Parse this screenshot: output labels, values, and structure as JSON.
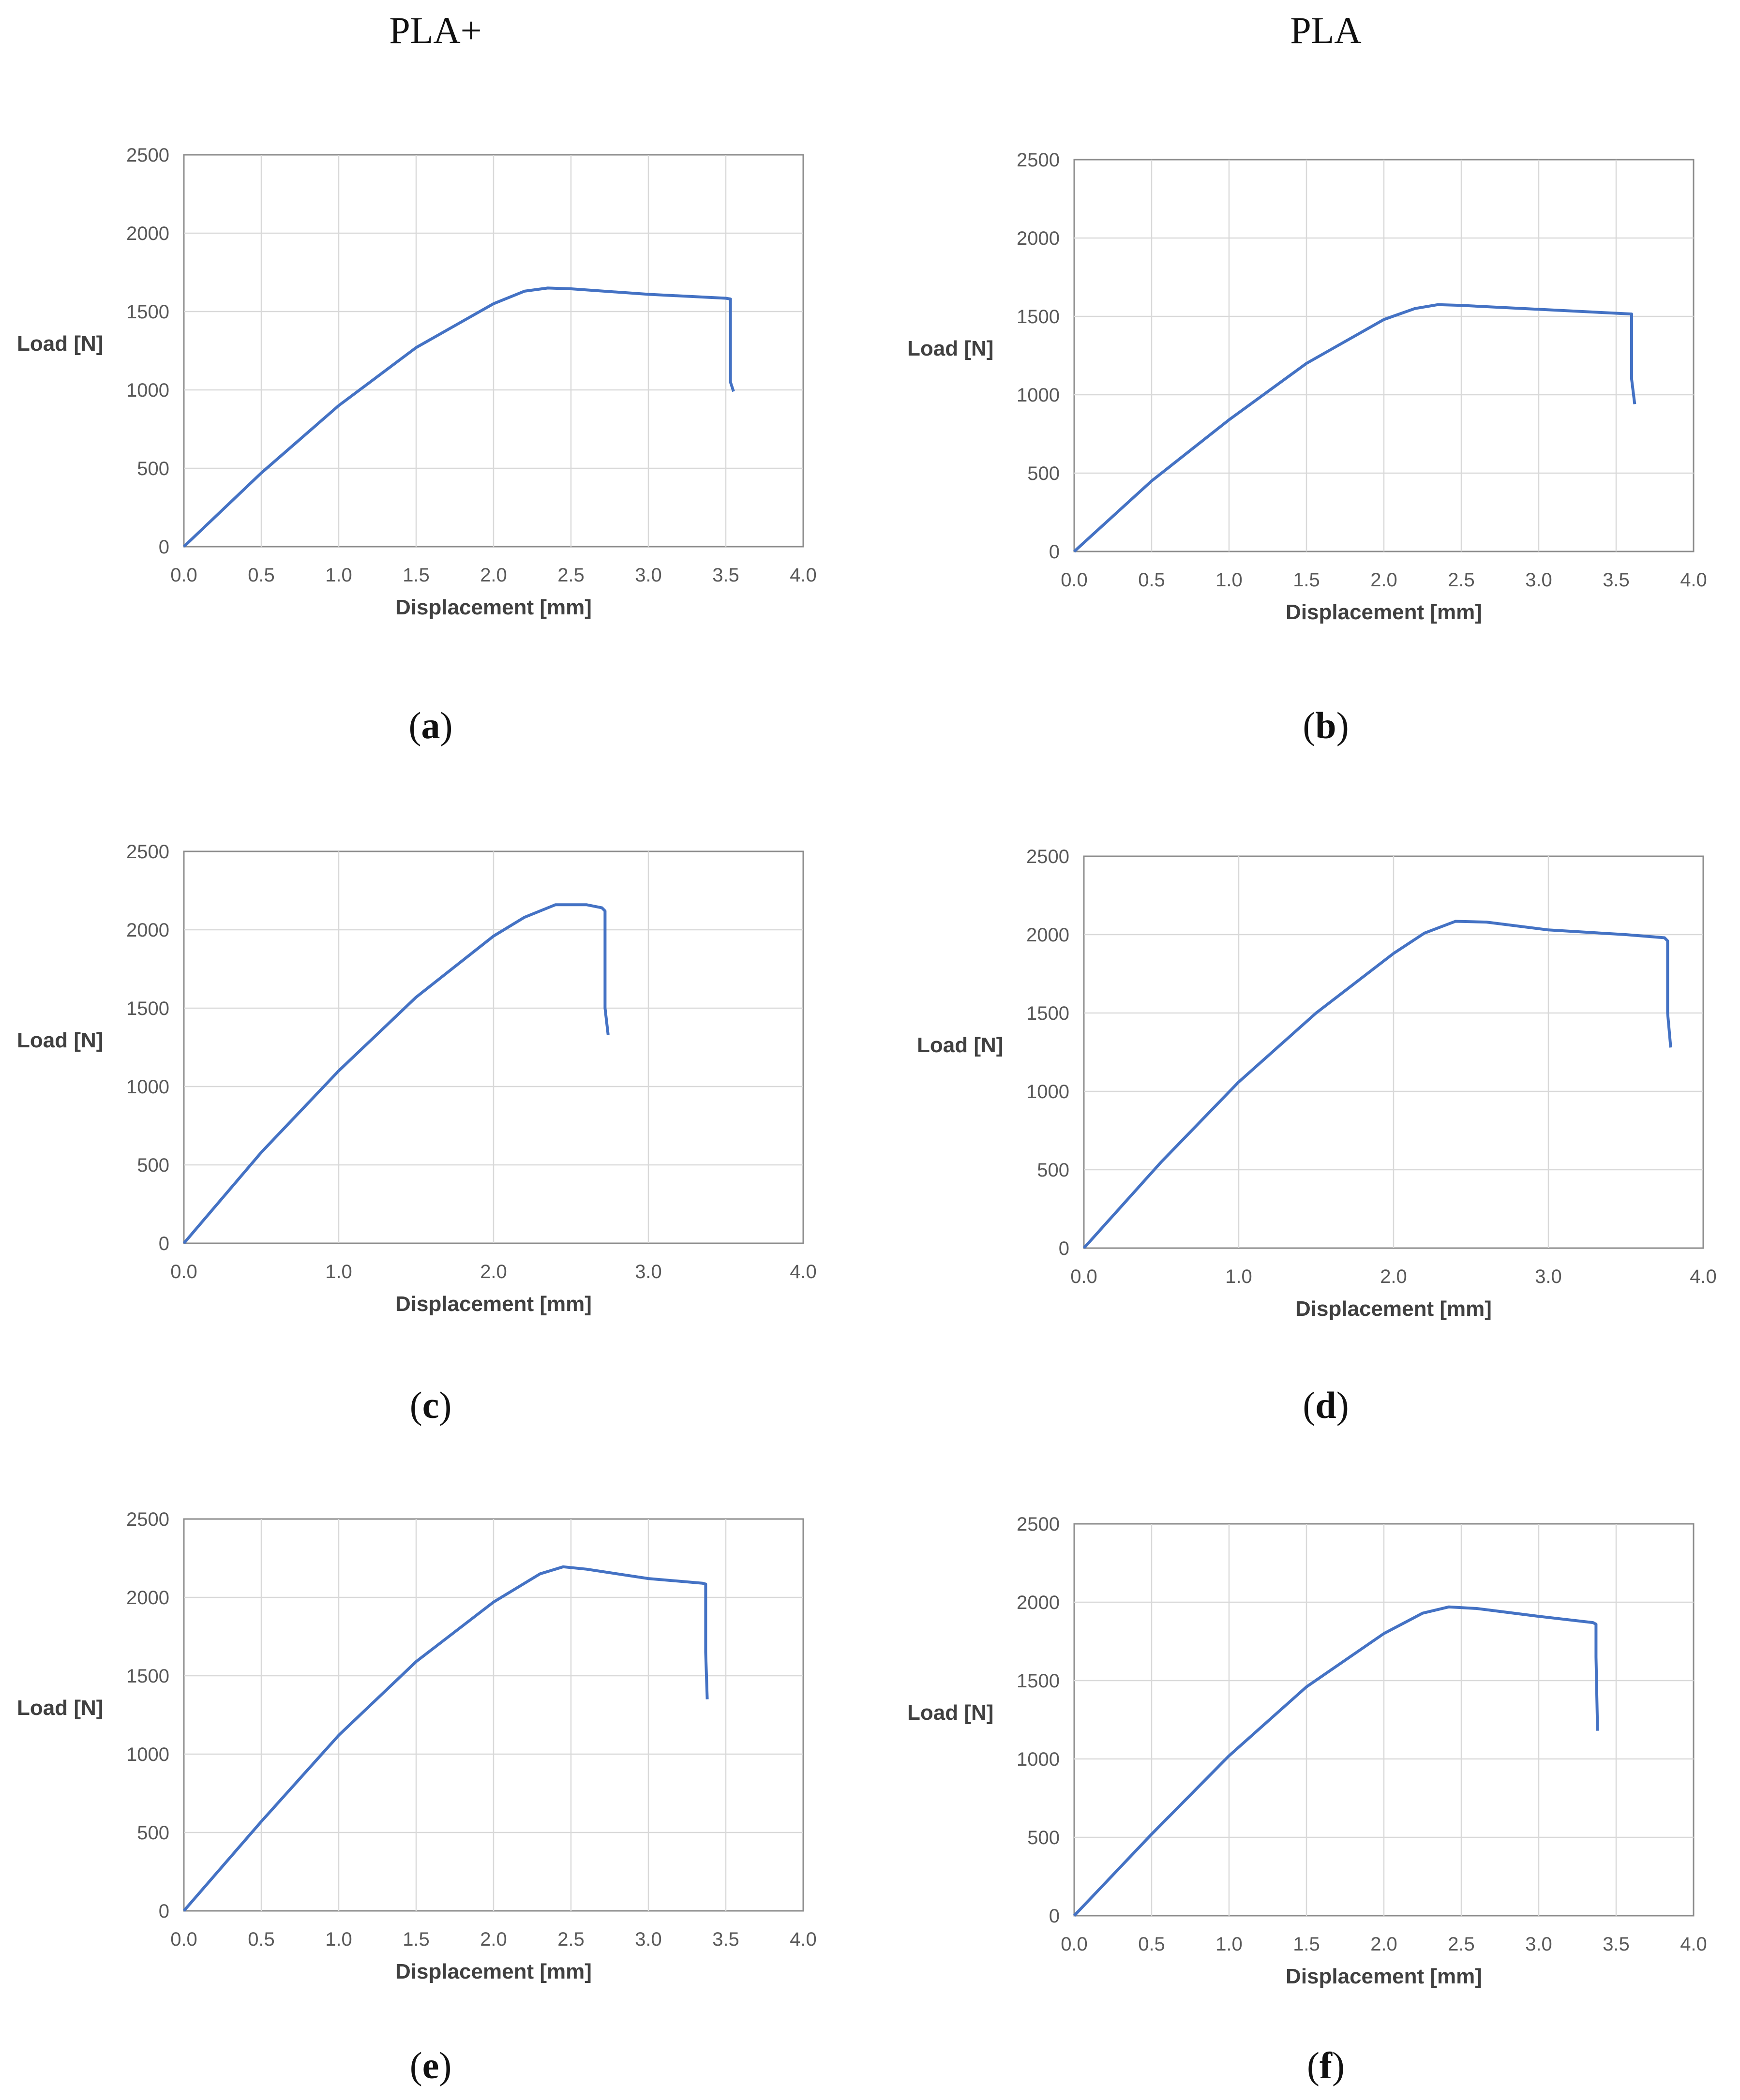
{
  "columns": {
    "left": "PLA+",
    "right": "PLA"
  },
  "chart_data": [
    {
      "id": "a",
      "caption": "a",
      "type": "line",
      "xlabel": "Displacement [mm]",
      "ylabel": "Load [N]",
      "xlim": [
        0,
        4
      ],
      "ylim": [
        0,
        2500
      ],
      "xticks": [
        "0.0",
        "0.5",
        "1.0",
        "1.5",
        "2.0",
        "2.5",
        "3.0",
        "3.5",
        "4.0"
      ],
      "yticks": [
        "0",
        "500",
        "1000",
        "1500",
        "2000",
        "2500"
      ],
      "series": [
        {
          "name": "PLA+",
          "x": [
            0,
            0.5,
            1.0,
            1.5,
            2.0,
            2.2,
            2.35,
            2.5,
            3.0,
            3.5,
            3.53,
            3.53,
            3.55
          ],
          "y": [
            0,
            470,
            900,
            1270,
            1550,
            1630,
            1650,
            1645,
            1610,
            1585,
            1580,
            1050,
            990
          ]
        }
      ]
    },
    {
      "id": "b",
      "caption": "b",
      "type": "line",
      "xlabel": "Displacement [mm]",
      "ylabel": "Load [N]",
      "xlim": [
        0,
        4
      ],
      "ylim": [
        0,
        2500
      ],
      "xticks": [
        "0.0",
        "0.5",
        "1.0",
        "1.5",
        "2.0",
        "2.5",
        "3.0",
        "3.5",
        "4.0"
      ],
      "yticks": [
        "0",
        "500",
        "1000",
        "1500",
        "2000",
        "2500"
      ],
      "series": [
        {
          "name": "PLA",
          "x": [
            0,
            0.5,
            1.0,
            1.5,
            2.0,
            2.2,
            2.35,
            2.5,
            3.0,
            3.5,
            3.6,
            3.6,
            3.62
          ],
          "y": [
            0,
            450,
            840,
            1200,
            1480,
            1550,
            1575,
            1570,
            1545,
            1520,
            1515,
            1100,
            940
          ]
        }
      ]
    },
    {
      "id": "c",
      "caption": "c",
      "type": "line",
      "xlabel": "Displacement [mm]",
      "ylabel": "Load [N]",
      "xlim": [
        0,
        4
      ],
      "ylim": [
        0,
        2500
      ],
      "xticks": [
        "0.0",
        "1.0",
        "2.0",
        "3.0",
        "4.0"
      ],
      "yticks": [
        "0",
        "500",
        "1000",
        "1500",
        "2000",
        "2500"
      ],
      "series": [
        {
          "name": "PLA+",
          "x": [
            0,
            0.5,
            1.0,
            1.5,
            2.0,
            2.2,
            2.4,
            2.6,
            2.7,
            2.72,
            2.72,
            2.74
          ],
          "y": [
            0,
            580,
            1100,
            1570,
            1960,
            2080,
            2160,
            2160,
            2140,
            2120,
            1500,
            1330
          ]
        }
      ]
    },
    {
      "id": "d",
      "caption": "d",
      "type": "line",
      "xlabel": "Displacement [mm]",
      "ylabel": "Load [N]",
      "xlim": [
        0,
        4
      ],
      "ylim": [
        0,
        2500
      ],
      "xticks": [
        "0.0",
        "1.0",
        "2.0",
        "3.0",
        "4.0"
      ],
      "yticks": [
        "0",
        "500",
        "1000",
        "1500",
        "2000",
        "2500"
      ],
      "series": [
        {
          "name": "PLA",
          "x": [
            0,
            0.5,
            1.0,
            1.5,
            2.0,
            2.2,
            2.4,
            2.6,
            3.0,
            3.5,
            3.75,
            3.77,
            3.77,
            3.79
          ],
          "y": [
            0,
            550,
            1060,
            1500,
            1880,
            2010,
            2085,
            2080,
            2030,
            2000,
            1980,
            1960,
            1500,
            1280
          ]
        }
      ]
    },
    {
      "id": "e",
      "caption": "e",
      "type": "line",
      "xlabel": "Displacement [mm]",
      "ylabel": "Load [N]",
      "xlim": [
        0,
        4
      ],
      "ylim": [
        0,
        2500
      ],
      "xticks": [
        "0.0",
        "0.5",
        "1.0",
        "1.5",
        "2.0",
        "2.5",
        "3.0",
        "3.5",
        "4.0"
      ],
      "yticks": [
        "0",
        "500",
        "1000",
        "1500",
        "2000",
        "2500"
      ],
      "series": [
        {
          "name": "PLA+",
          "x": [
            0,
            0.5,
            1.0,
            1.5,
            2.0,
            2.3,
            2.45,
            2.6,
            3.0,
            3.35,
            3.37,
            3.37,
            3.38
          ],
          "y": [
            0,
            570,
            1120,
            1590,
            1970,
            2150,
            2195,
            2180,
            2120,
            2090,
            2085,
            1650,
            1350
          ]
        }
      ]
    },
    {
      "id": "f",
      "caption": "f",
      "type": "line",
      "xlabel": "Displacement [mm]",
      "ylabel": "Load [N]",
      "xlim": [
        0,
        4
      ],
      "ylim": [
        0,
        2500
      ],
      "xticks": [
        "0.0",
        "0.5",
        "1.0",
        "1.5",
        "2.0",
        "2.5",
        "3.0",
        "3.5",
        "4.0"
      ],
      "yticks": [
        "0",
        "500",
        "1000",
        "1500",
        "2000",
        "2500"
      ],
      "series": [
        {
          "name": "PLA",
          "x": [
            0,
            0.5,
            1.0,
            1.5,
            2.0,
            2.25,
            2.42,
            2.6,
            3.0,
            3.35,
            3.37,
            3.37,
            3.38
          ],
          "y": [
            0,
            520,
            1020,
            1460,
            1800,
            1930,
            1970,
            1960,
            1910,
            1870,
            1860,
            1650,
            1180
          ]
        }
      ]
    }
  ]
}
